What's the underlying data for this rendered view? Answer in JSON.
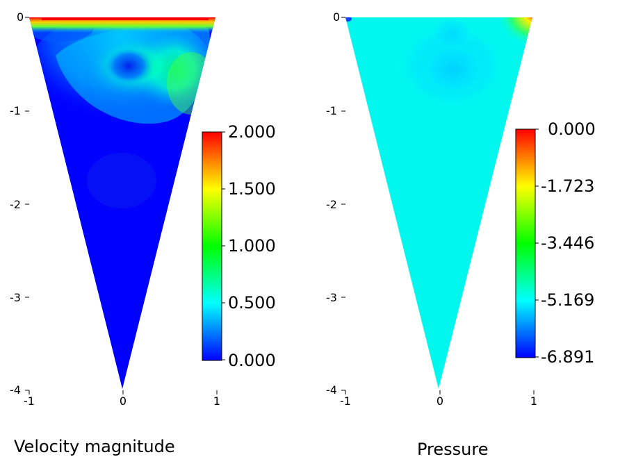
{
  "chart_data": [
    {
      "type": "heatmap",
      "title": "Velocity magnitude",
      "x_ticks": [
        "-1",
        "0",
        "1"
      ],
      "y_ticks": [
        "0",
        "-1",
        "-2",
        "-3",
        "-4"
      ],
      "xlim": [
        -1,
        1
      ],
      "ylim": [
        -4,
        0
      ],
      "domain": {
        "shape": "triangle",
        "vertices": [
          [
            -1,
            0
          ],
          [
            1,
            0
          ],
          [
            0,
            -4
          ]
        ]
      },
      "colorbar": {
        "min": 0.0,
        "max": 2.0,
        "tick_values": [
          2.0,
          1.5,
          1.0,
          0.5,
          0.0
        ],
        "tick_labels": [
          "2.000",
          "1.500",
          "1.000",
          "0.500",
          "0.000"
        ],
        "colormap": [
          "#0000ff",
          "#00ffff",
          "#00ff00",
          "#ffff00",
          "#ff0000"
        ]
      }
    },
    {
      "type": "heatmap",
      "title": "Pressure",
      "x_ticks": [
        "-1",
        "0",
        "1"
      ],
      "y_ticks": [
        "0",
        "-1",
        "-2",
        "-3",
        "-4"
      ],
      "xlim": [
        -1,
        1
      ],
      "ylim": [
        -4,
        0
      ],
      "domain": {
        "shape": "triangle",
        "vertices": [
          [
            -1,
            0
          ],
          [
            1,
            0
          ],
          [
            0,
            -4
          ]
        ]
      },
      "colorbar": {
        "min": -6.891,
        "max": 0.0,
        "tick_values": [
          0.0,
          -1.723,
          -3.446,
          -5.169,
          -6.891
        ],
        "tick_labels": [
          "0.000",
          "-1.723",
          "-3.446",
          "-5.169",
          "-6.891"
        ],
        "colormap": [
          "#0000ff",
          "#00ffff",
          "#00ff00",
          "#ffff00",
          "#ff0000"
        ]
      }
    }
  ]
}
